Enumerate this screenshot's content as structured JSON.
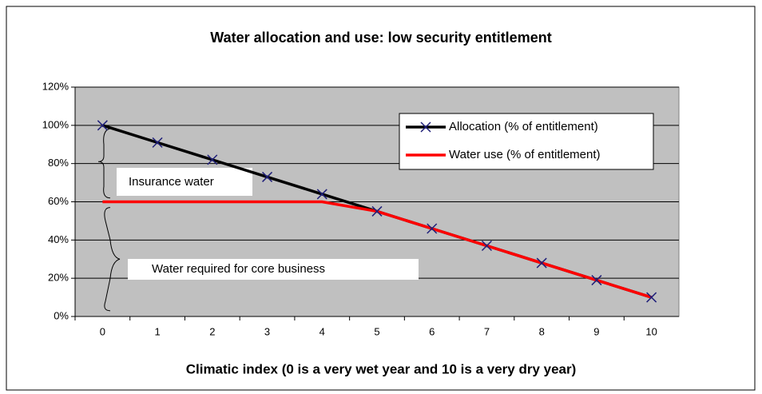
{
  "chart_data": {
    "type": "line",
    "title": "Water allocation and use: low security entitlement",
    "x_label": "Climatic index (0 is a very wet year and 10 is a very dry year)",
    "categories": [
      "0",
      "1",
      "2",
      "3",
      "4",
      "5",
      "6",
      "7",
      "8",
      "9",
      "10"
    ],
    "series": [
      {
        "name": "Allocation (% of entitlement)",
        "color": "#000000",
        "marker_color": "#1f1f7a",
        "values": [
          100,
          91,
          82,
          73,
          64,
          55,
          46,
          37,
          28,
          19,
          10
        ]
      },
      {
        "name": "Water use (% of entitlement)",
        "color": "#ff0000",
        "values": [
          60,
          60,
          60,
          60,
          60,
          55,
          46,
          37,
          28,
          19,
          10
        ]
      }
    ],
    "ylim": [
      0,
      120
    ],
    "yticks": [
      {
        "value": 0,
        "label": "0%"
      },
      {
        "value": 20,
        "label": "20%"
      },
      {
        "value": 40,
        "label": "40%"
      },
      {
        "value": 60,
        "label": "60%"
      },
      {
        "value": 80,
        "label": "80%"
      },
      {
        "value": 100,
        "label": "100%"
      },
      {
        "value": 120,
        "label": "120%"
      }
    ],
    "grid": true,
    "plot_background": "#c0c0c0",
    "annotations": [
      "Insurance water",
      "Water required for core business"
    ]
  }
}
